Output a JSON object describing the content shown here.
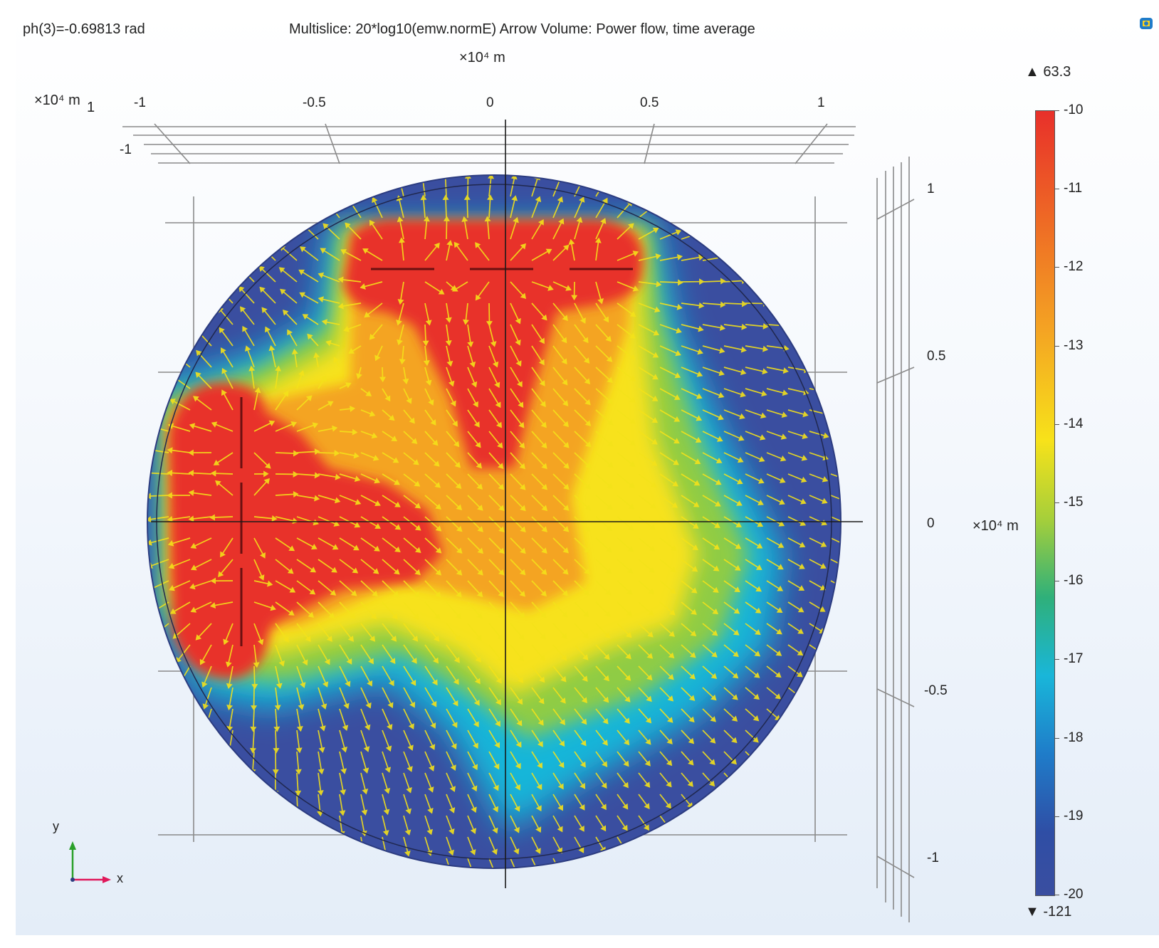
{
  "header": {
    "parameter_text": "ph(3)=-0.69813 rad",
    "plot_title": "Multislice: 20*log10(emw.normE)  Arrow Volume: Power flow, time average",
    "x_unit": "×10⁴ m",
    "corner_unit": "×10⁴ m",
    "corner_tick": "1",
    "z_tick": "-1"
  },
  "x_axis": {
    "ticks": [
      "-1",
      "-0.5",
      "0",
      "0.5",
      "1"
    ]
  },
  "y_axis": {
    "ticks": [
      "1",
      "0.5",
      "0",
      "-0.5",
      "-1"
    ],
    "unit": "×10⁴ m"
  },
  "colorbar": {
    "max_marker": "▲ 63.3",
    "min_marker": "▼ -121",
    "ticks": [
      "-10",
      "-11",
      "-12",
      "-13",
      "-14",
      "-15",
      "-16",
      "-17",
      "-18",
      "-19",
      "-20"
    ],
    "colors": [
      "#e8302a",
      "#ee6a25",
      "#f4a423",
      "#f7e21a",
      "#a6cf3a",
      "#2fb07a",
      "#19b6d9",
      "#1f7cc9",
      "#2f4ea5",
      "#3a4ea0"
    ]
  },
  "axis_triad": {
    "y_label": "y",
    "x_label": "x"
  },
  "colors": {
    "domain_background": "#3a4ea0",
    "field_high": "#e8302a",
    "field_mid": "#f7e21a",
    "field_low": "#19b6d9",
    "arrow": "#f4e21a",
    "grid_line": "#8a8a8a"
  }
}
